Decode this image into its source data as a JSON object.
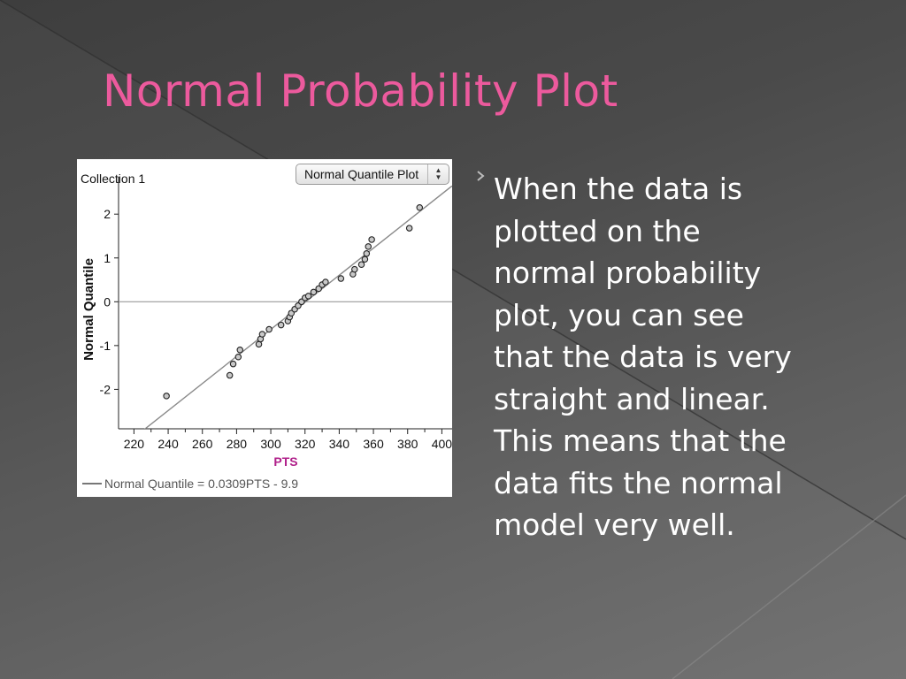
{
  "slide": {
    "title": "Normal Probability Plot",
    "body": "When the data is\nplotted on the\nnormal probability\nplot, you can see\nthat the data is very\nstraight and linear.\nThis means that the\ndata fits the normal\nmodel very well.",
    "title_color": "#ec5a9d",
    "text_color": "#ffffff"
  },
  "chart_data": {
    "type": "scatter",
    "title": "Collection 1",
    "plot_type_selector": "Normal Quantile Plot",
    "xlabel": "PTS",
    "ylabel": "Normal Quantile",
    "xlim": [
      211,
      406
    ],
    "ylim": [
      -2.9,
      2.65
    ],
    "x_ticks": [
      220,
      240,
      260,
      280,
      300,
      320,
      340,
      360,
      380,
      400
    ],
    "y_ticks": [
      -2,
      -1,
      0,
      1,
      2
    ],
    "grid": false,
    "reference_line_y": 0,
    "fit_line": {
      "slope": 0.0309,
      "intercept": -9.9,
      "label": "Normal Quantile = 0.0309PTS - 9.9"
    },
    "xlabel_color": "#b0208a",
    "points": [
      {
        "x": 239,
        "y": -2.15
      },
      {
        "x": 276,
        "y": -1.68
      },
      {
        "x": 278,
        "y": -1.42
      },
      {
        "x": 281,
        "y": -1.26
      },
      {
        "x": 282,
        "y": -1.1
      },
      {
        "x": 293,
        "y": -0.97
      },
      {
        "x": 294,
        "y": -0.85
      },
      {
        "x": 295,
        "y": -0.74
      },
      {
        "x": 299,
        "y": -0.63
      },
      {
        "x": 306,
        "y": -0.53
      },
      {
        "x": 310,
        "y": -0.44
      },
      {
        "x": 311,
        "y": -0.35
      },
      {
        "x": 312,
        "y": -0.26
      },
      {
        "x": 314,
        "y": -0.17
      },
      {
        "x": 316,
        "y": -0.09
      },
      {
        "x": 318,
        "y": 0.0
      },
      {
        "x": 320,
        "y": 0.09
      },
      {
        "x": 322,
        "y": 0.13
      },
      {
        "x": 325,
        "y": 0.22
      },
      {
        "x": 328,
        "y": 0.3
      },
      {
        "x": 330,
        "y": 0.39
      },
      {
        "x": 332,
        "y": 0.45
      },
      {
        "x": 341,
        "y": 0.53
      },
      {
        "x": 348,
        "y": 0.63
      },
      {
        "x": 349,
        "y": 0.74
      },
      {
        "x": 353,
        "y": 0.85
      },
      {
        "x": 355,
        "y": 0.97
      },
      {
        "x": 356,
        "y": 1.1
      },
      {
        "x": 357,
        "y": 1.26
      },
      {
        "x": 359,
        "y": 1.42
      },
      {
        "x": 381,
        "y": 1.68
      },
      {
        "x": 387,
        "y": 2.15
      }
    ]
  }
}
